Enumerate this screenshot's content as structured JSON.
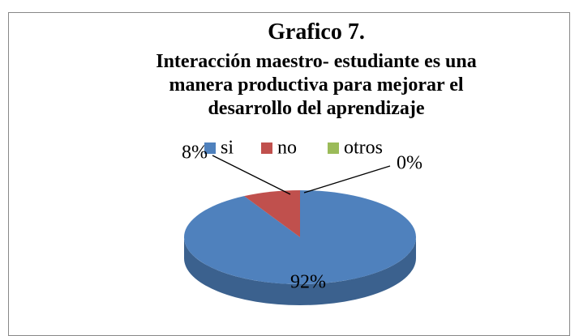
{
  "chart_data": {
    "type": "pie",
    "title": "Grafico 7.",
    "subtitle": "Interacción maestro- estudiante es una manera productiva para mejorar el desarrollo del aprendizaje",
    "categories": [
      "si",
      "no",
      "otros"
    ],
    "values": [
      92,
      8,
      0
    ],
    "value_labels": [
      "92%",
      "8%",
      "0%"
    ],
    "colors": [
      "#4f81bd",
      "#c0504d",
      "#9bbb59"
    ],
    "legend": "top"
  }
}
